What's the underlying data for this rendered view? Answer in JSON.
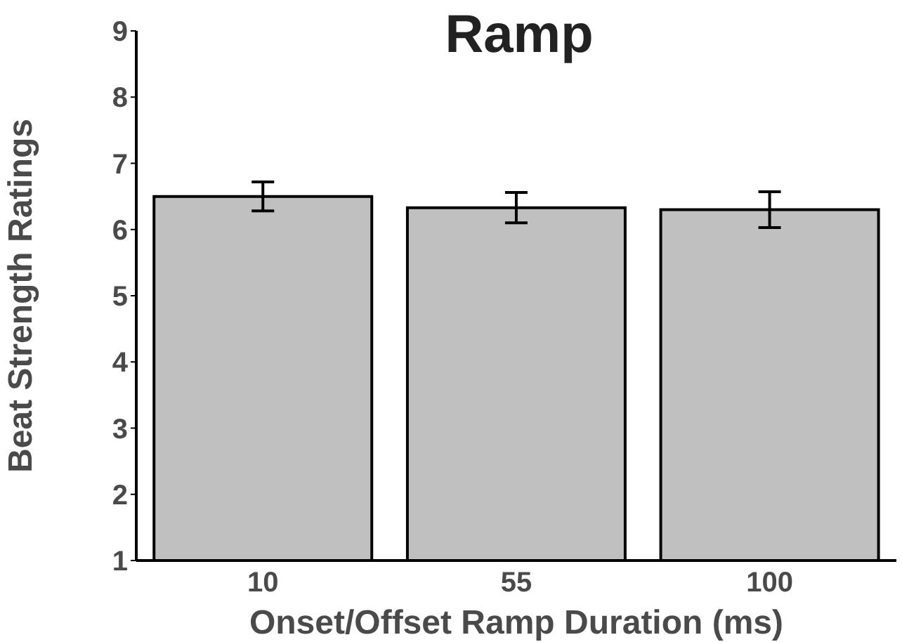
{
  "chart_data": {
    "type": "bar",
    "title": "Ramp",
    "xlabel": "Onset/Offset Ramp Duration (ms)",
    "ylabel": "Beat Strength Ratings",
    "categories": [
      "10",
      "55",
      "100"
    ],
    "values": [
      6.5,
      6.33,
      6.3
    ],
    "errors": [
      0.22,
      0.23,
      0.27
    ],
    "color": "#c0c0c0",
    "ylim": [
      1,
      9
    ],
    "yticks": [
      1,
      2,
      3,
      4,
      5,
      6,
      7,
      8,
      9
    ],
    "grid": false
  }
}
